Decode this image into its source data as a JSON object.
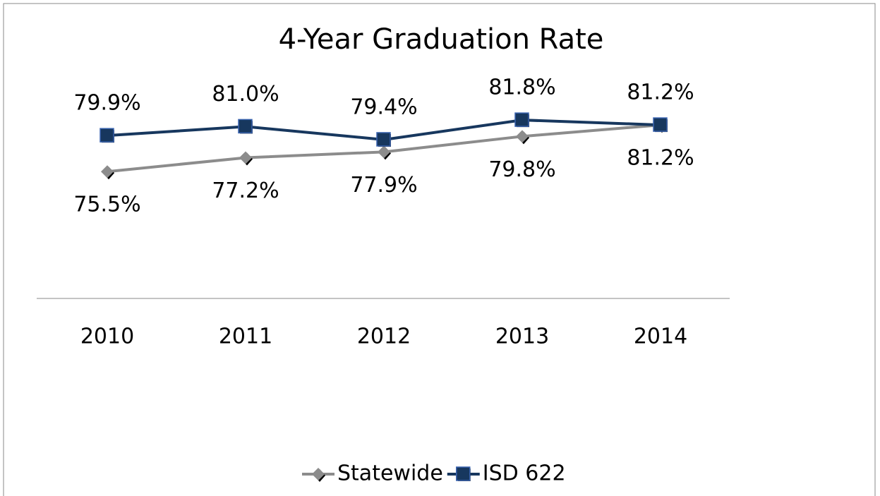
{
  "chart_data": {
    "type": "line",
    "title": "4-Year Graduation Rate",
    "categories": [
      "2010",
      "2011",
      "2012",
      "2013",
      "2014"
    ],
    "ylim": [
      60,
      85
    ],
    "series": [
      {
        "name": "Statewide",
        "color": "#8c8c8c",
        "marker": "diamond",
        "label_position": "below",
        "values": [
          75.5,
          77.2,
          77.9,
          79.8,
          81.2
        ],
        "value_labels": [
          "75.5%",
          "77.2%",
          "77.9%",
          "79.8%",
          "81.2%"
        ]
      },
      {
        "name": "ISD 622",
        "color": "#17375e",
        "marker": "square",
        "label_position": "above",
        "values": [
          79.9,
          81.0,
          79.4,
          81.8,
          81.2
        ],
        "value_labels": [
          "79.9%",
          "81.0%",
          "79.4%",
          "81.8%",
          "81.2%"
        ]
      }
    ],
    "legend": "bottom"
  }
}
